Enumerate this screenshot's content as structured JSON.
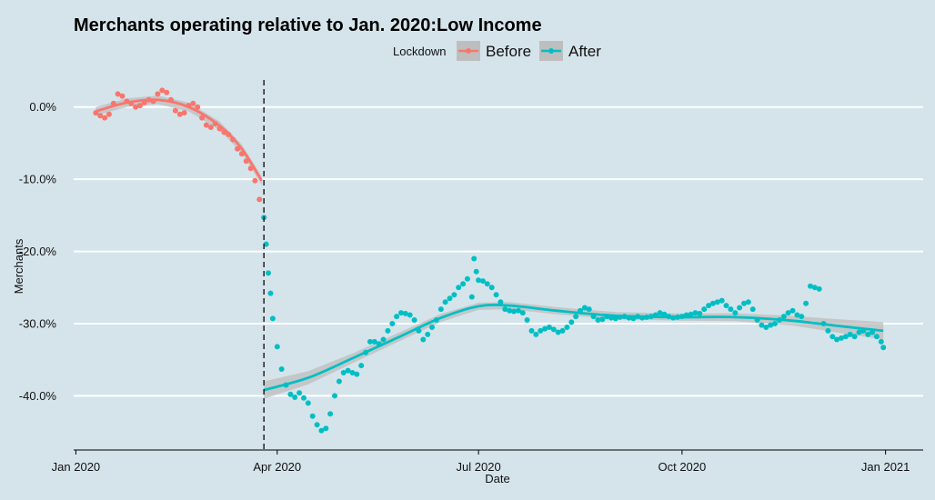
{
  "chart_data": {
    "type": "scatter",
    "title": "Merchants operating relative to Jan. 2020:Low Income",
    "xlabel": "Date",
    "ylabel": "Merchants",
    "xlim": [
      "2019-12-31",
      "2021-01-18"
    ],
    "ylim": [
      -47.5,
      5.0
    ],
    "x_ticks": [
      {
        "date": "2020-01-01",
        "label": "Jan 2020"
      },
      {
        "date": "2020-04-01",
        "label": "Apr 2020"
      },
      {
        "date": "2020-07-01",
        "label": "Jul 2020"
      },
      {
        "date": "2020-10-01",
        "label": "Oct 2020"
      },
      {
        "date": "2021-01-01",
        "label": "Jan 2021"
      }
    ],
    "y_ticks": [
      {
        "value": 0,
        "label": "0.0%"
      },
      {
        "value": -10,
        "label": "-10.0%"
      },
      {
        "value": -20,
        "label": "-20.0%"
      },
      {
        "value": -30,
        "label": "-30.0%"
      },
      {
        "value": -40,
        "label": "-40.0%"
      }
    ],
    "grid": "horizontal major lines",
    "legend": {
      "title": "Lockdown",
      "position": "top"
    },
    "vline": {
      "date": "2020-03-26",
      "style": "dashed"
    },
    "colors": {
      "before": "#f8766d",
      "after": "#00bfc4",
      "background": "#d5e4eb",
      "ribbon": "#bebebe"
    },
    "series": [
      {
        "name": "Before",
        "points": [
          [
            "2020-01-10",
            -0.8
          ],
          [
            "2020-01-12",
            -1.2
          ],
          [
            "2020-01-14",
            -1.5
          ],
          [
            "2020-01-16",
            -1.0
          ],
          [
            "2020-01-18",
            0.5
          ],
          [
            "2020-01-20",
            1.8
          ],
          [
            "2020-01-22",
            1.5
          ],
          [
            "2020-01-24",
            0.8
          ],
          [
            "2020-01-26",
            0.5
          ],
          [
            "2020-01-28",
            0.0
          ],
          [
            "2020-01-30",
            0.2
          ],
          [
            "2020-02-01",
            0.6
          ],
          [
            "2020-02-03",
            1.0
          ],
          [
            "2020-02-05",
            0.8
          ],
          [
            "2020-02-07",
            1.8
          ],
          [
            "2020-02-09",
            2.3
          ],
          [
            "2020-02-11",
            2.0
          ],
          [
            "2020-02-13",
            1.0
          ],
          [
            "2020-02-15",
            -0.5
          ],
          [
            "2020-02-17",
            -1.0
          ],
          [
            "2020-02-19",
            -0.8
          ],
          [
            "2020-02-21",
            0.2
          ],
          [
            "2020-02-23",
            0.5
          ],
          [
            "2020-02-25",
            0.0
          ],
          [
            "2020-02-27",
            -1.5
          ],
          [
            "2020-02-29",
            -2.5
          ],
          [
            "2020-03-02",
            -2.8
          ],
          [
            "2020-03-04",
            -2.3
          ],
          [
            "2020-03-06",
            -3.0
          ],
          [
            "2020-03-08",
            -3.5
          ],
          [
            "2020-03-10",
            -3.8
          ],
          [
            "2020-03-12",
            -4.5
          ],
          [
            "2020-03-14",
            -5.8
          ],
          [
            "2020-03-16",
            -6.5
          ],
          [
            "2020-03-18",
            -7.5
          ],
          [
            "2020-03-20",
            -8.5
          ],
          [
            "2020-03-22",
            -10.2
          ],
          [
            "2020-03-24",
            -12.8
          ]
        ],
        "trend": [
          [
            "2020-01-10",
            -0.6
          ],
          [
            "2020-01-24",
            0.6
          ],
          [
            "2020-02-07",
            1.0
          ],
          [
            "2020-02-21",
            0.0
          ],
          [
            "2020-03-06",
            -2.6
          ],
          [
            "2020-03-16",
            -5.8
          ],
          [
            "2020-03-25",
            -10.2
          ]
        ]
      },
      {
        "name": "After",
        "points": [
          [
            "2020-03-26",
            -15.3
          ],
          [
            "2020-03-27",
            -19.0
          ],
          [
            "2020-03-28",
            -23.0
          ],
          [
            "2020-03-29",
            -25.8
          ],
          [
            "2020-03-30",
            -29.3
          ],
          [
            "2020-04-01",
            -33.2
          ],
          [
            "2020-04-03",
            -36.3
          ],
          [
            "2020-04-05",
            -38.5
          ],
          [
            "2020-04-07",
            -39.8
          ],
          [
            "2020-04-09",
            -40.2
          ],
          [
            "2020-04-11",
            -39.6
          ],
          [
            "2020-04-13",
            -40.3
          ],
          [
            "2020-04-15",
            -41.0
          ],
          [
            "2020-04-17",
            -42.8
          ],
          [
            "2020-04-19",
            -44.0
          ],
          [
            "2020-04-21",
            -44.8
          ],
          [
            "2020-04-23",
            -44.5
          ],
          [
            "2020-04-25",
            -42.5
          ],
          [
            "2020-04-27",
            -40.0
          ],
          [
            "2020-04-29",
            -38.0
          ],
          [
            "2020-05-01",
            -36.8
          ],
          [
            "2020-05-03",
            -36.5
          ],
          [
            "2020-05-05",
            -36.8
          ],
          [
            "2020-05-07",
            -37.0
          ],
          [
            "2020-05-09",
            -35.8
          ],
          [
            "2020-05-11",
            -34.0
          ],
          [
            "2020-05-13",
            -32.5
          ],
          [
            "2020-05-15",
            -32.5
          ],
          [
            "2020-05-17",
            -32.8
          ],
          [
            "2020-05-19",
            -32.2
          ],
          [
            "2020-05-21",
            -31.0
          ],
          [
            "2020-05-23",
            -30.0
          ],
          [
            "2020-05-25",
            -29.0
          ],
          [
            "2020-05-27",
            -28.5
          ],
          [
            "2020-05-29",
            -28.6
          ],
          [
            "2020-05-31",
            -28.8
          ],
          [
            "2020-06-02",
            -29.5
          ],
          [
            "2020-06-04",
            -31.0
          ],
          [
            "2020-06-06",
            -32.2
          ],
          [
            "2020-06-08",
            -31.5
          ],
          [
            "2020-06-10",
            -30.5
          ],
          [
            "2020-06-12",
            -29.5
          ],
          [
            "2020-06-14",
            -28.0
          ],
          [
            "2020-06-16",
            -27.0
          ],
          [
            "2020-06-18",
            -26.5
          ],
          [
            "2020-06-20",
            -26.0
          ],
          [
            "2020-06-22",
            -25.0
          ],
          [
            "2020-06-24",
            -24.5
          ],
          [
            "2020-06-26",
            -23.8
          ],
          [
            "2020-06-28",
            -26.3
          ],
          [
            "2020-06-29",
            -21.0
          ],
          [
            "2020-06-30",
            -22.8
          ],
          [
            "2020-07-01",
            -24.0
          ],
          [
            "2020-07-03",
            -24.1
          ],
          [
            "2020-07-05",
            -24.5
          ],
          [
            "2020-07-07",
            -25.0
          ],
          [
            "2020-07-09",
            -26.0
          ],
          [
            "2020-07-11",
            -27.0
          ],
          [
            "2020-07-13",
            -28.0
          ],
          [
            "2020-07-15",
            -28.2
          ],
          [
            "2020-07-17",
            -28.3
          ],
          [
            "2020-07-19",
            -28.2
          ],
          [
            "2020-07-21",
            -28.5
          ],
          [
            "2020-07-23",
            -29.5
          ],
          [
            "2020-07-25",
            -31.0
          ],
          [
            "2020-07-27",
            -31.5
          ],
          [
            "2020-07-29",
            -31.0
          ],
          [
            "2020-07-31",
            -30.7
          ],
          [
            "2020-08-02",
            -30.5
          ],
          [
            "2020-08-04",
            -30.8
          ],
          [
            "2020-08-06",
            -31.2
          ],
          [
            "2020-08-08",
            -31.0
          ],
          [
            "2020-08-10",
            -30.5
          ],
          [
            "2020-08-12",
            -29.8
          ],
          [
            "2020-08-14",
            -29.0
          ],
          [
            "2020-08-16",
            -28.2
          ],
          [
            "2020-08-18",
            -27.8
          ],
          [
            "2020-08-20",
            -28.0
          ],
          [
            "2020-08-22",
            -29.0
          ],
          [
            "2020-08-24",
            -29.5
          ],
          [
            "2020-08-26",
            -29.4
          ],
          [
            "2020-08-28",
            -29.0
          ],
          [
            "2020-08-30",
            -29.2
          ],
          [
            "2020-09-01",
            -29.3
          ],
          [
            "2020-09-03",
            -29.1
          ],
          [
            "2020-09-05",
            -29.0
          ],
          [
            "2020-09-07",
            -29.2
          ],
          [
            "2020-09-09",
            -29.3
          ],
          [
            "2020-09-11",
            -29.0
          ],
          [
            "2020-09-13",
            -29.2
          ],
          [
            "2020-09-15",
            -29.1
          ],
          [
            "2020-09-17",
            -29.0
          ],
          [
            "2020-09-19",
            -28.8
          ],
          [
            "2020-09-21",
            -28.5
          ],
          [
            "2020-09-23",
            -28.7
          ],
          [
            "2020-09-25",
            -29.0
          ],
          [
            "2020-09-27",
            -29.2
          ],
          [
            "2020-09-29",
            -29.1
          ],
          [
            "2020-10-01",
            -29.0
          ],
          [
            "2020-10-03",
            -28.8
          ],
          [
            "2020-10-05",
            -28.7
          ],
          [
            "2020-10-07",
            -28.5
          ],
          [
            "2020-10-09",
            -28.6
          ],
          [
            "2020-10-11",
            -28.0
          ],
          [
            "2020-10-13",
            -27.5
          ],
          [
            "2020-10-15",
            -27.2
          ],
          [
            "2020-10-17",
            -27.0
          ],
          [
            "2020-10-19",
            -26.8
          ],
          [
            "2020-10-21",
            -27.5
          ],
          [
            "2020-10-23",
            -28.0
          ],
          [
            "2020-10-25",
            -28.5
          ],
          [
            "2020-10-27",
            -27.8
          ],
          [
            "2020-10-29",
            -27.2
          ],
          [
            "2020-10-31",
            -27.0
          ],
          [
            "2020-11-02",
            -28.0
          ],
          [
            "2020-11-04",
            -29.5
          ],
          [
            "2020-11-06",
            -30.2
          ],
          [
            "2020-11-08",
            -30.5
          ],
          [
            "2020-11-10",
            -30.2
          ],
          [
            "2020-11-12",
            -30.0
          ],
          [
            "2020-11-14",
            -29.5
          ],
          [
            "2020-11-16",
            -29.0
          ],
          [
            "2020-11-18",
            -28.5
          ],
          [
            "2020-11-20",
            -28.2
          ],
          [
            "2020-11-22",
            -28.8
          ],
          [
            "2020-11-24",
            -29.0
          ],
          [
            "2020-11-26",
            -27.2
          ],
          [
            "2020-11-28",
            -24.8
          ],
          [
            "2020-11-30",
            -25.0
          ],
          [
            "2020-12-02",
            -25.2
          ],
          [
            "2020-12-04",
            -30.0
          ],
          [
            "2020-12-06",
            -31.0
          ],
          [
            "2020-12-08",
            -31.8
          ],
          [
            "2020-12-10",
            -32.2
          ],
          [
            "2020-12-12",
            -32.0
          ],
          [
            "2020-12-14",
            -31.8
          ],
          [
            "2020-12-16",
            -31.5
          ],
          [
            "2020-12-18",
            -31.8
          ],
          [
            "2020-12-20",
            -31.2
          ],
          [
            "2020-12-22",
            -31.0
          ],
          [
            "2020-12-24",
            -31.5
          ],
          [
            "2020-12-26",
            -31.2
          ],
          [
            "2020-12-28",
            -31.8
          ],
          [
            "2020-12-30",
            -32.5
          ],
          [
            "2020-12-31",
            -33.3
          ]
        ],
        "trend": [
          [
            "2020-03-26",
            -39.2
          ],
          [
            "2020-04-15",
            -37.5
          ],
          [
            "2020-05-05",
            -34.8
          ],
          [
            "2020-05-25",
            -32.0
          ],
          [
            "2020-06-14",
            -29.2
          ],
          [
            "2020-07-01",
            -27.6
          ],
          [
            "2020-07-15",
            -27.5
          ],
          [
            "2020-08-05",
            -28.2
          ],
          [
            "2020-09-01",
            -28.9
          ],
          [
            "2020-10-01",
            -29.1
          ],
          [
            "2020-10-25",
            -29.1
          ],
          [
            "2020-11-20",
            -29.6
          ],
          [
            "2020-12-10",
            -30.3
          ],
          [
            "2020-12-31",
            -31.0
          ]
        ],
        "ribbon_halfwidth": [
          [
            "2020-03-26",
            1.2
          ],
          [
            "2020-05-01",
            0.7
          ],
          [
            "2020-07-01",
            0.5
          ],
          [
            "2020-10-01",
            0.5
          ],
          [
            "2020-11-15",
            0.6
          ],
          [
            "2020-12-31",
            1.2
          ]
        ]
      }
    ]
  }
}
